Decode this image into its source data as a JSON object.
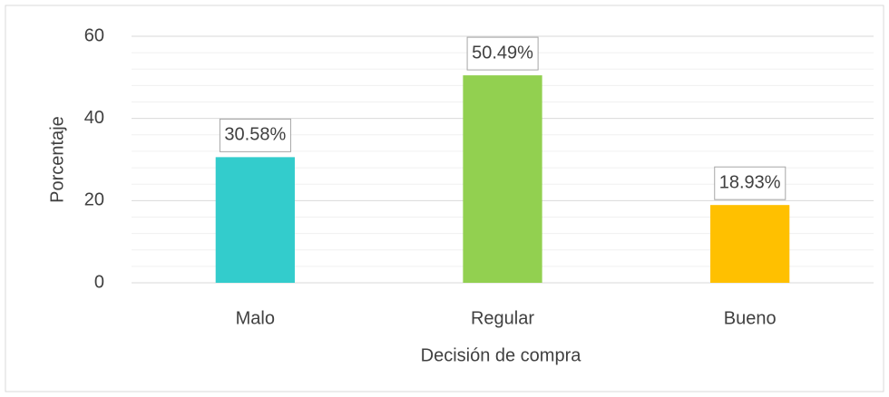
{
  "chart_data": {
    "type": "bar",
    "categories": [
      "Malo",
      "Regular",
      "Bueno"
    ],
    "values": [
      30.58,
      50.49,
      18.93
    ],
    "value_labels": [
      "30.58%",
      "50.49%",
      "18.93%"
    ],
    "colors": [
      "#33CCCC",
      "#92D050",
      "#FFC000"
    ],
    "x_label": "Decisión de compra",
    "y_label": "Porcentaje",
    "ylim": [
      0,
      60
    ],
    "yticks": [
      0,
      20,
      40,
      60
    ],
    "grid": true
  }
}
